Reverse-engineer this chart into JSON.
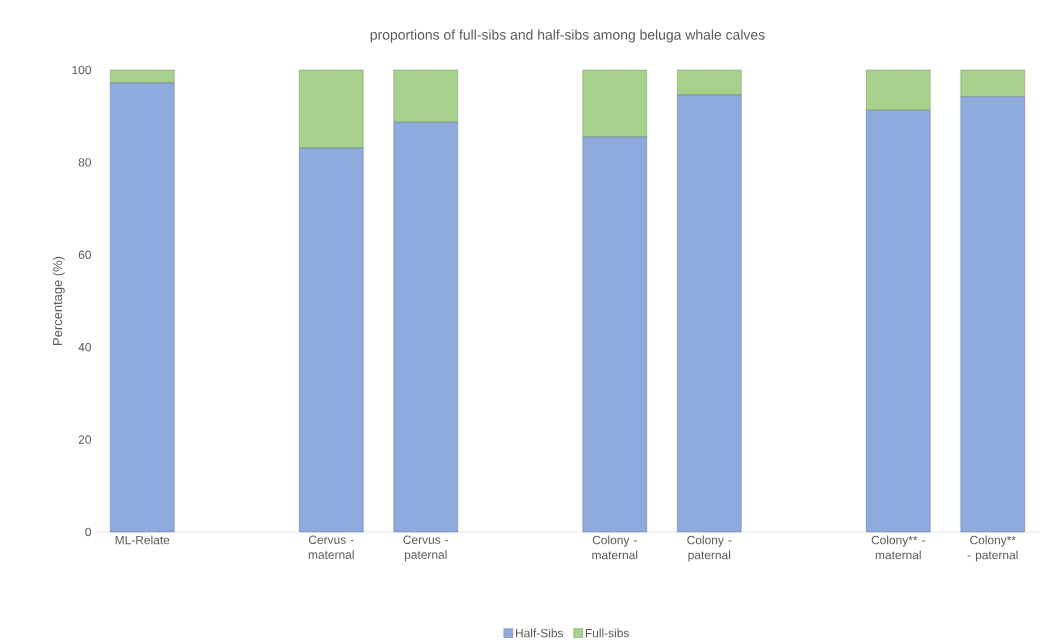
{
  "chart_data": {
    "type": "bar",
    "title": "proportions of full-sibs and half-sibs among beluga whale calves",
    "ylabel": "Percentage (%)",
    "categories": [
      "ML-Relate",
      null,
      "Cervus - maternal",
      "Cervus - paternal",
      null,
      "Colony - maternal",
      "Colony - paternal",
      null,
      "Colony** - maternal",
      "Colony** - paternal"
    ],
    "stacked": true,
    "series": [
      {
        "name": "Half-Sibs",
        "color": "#8faadc",
        "values": [
          97.2,
          null,
          83.1,
          88.7,
          null,
          85.5,
          94.6,
          null,
          91.3,
          94.2
        ]
      },
      {
        "name": "Full-sibs",
        "color": "#a9d18e",
        "values": [
          2.8,
          null,
          16.9,
          11.3,
          null,
          14.5,
          5.4,
          null,
          8.7,
          5.8
        ]
      }
    ],
    "ylim": [
      0,
      100
    ],
    "yticks": [
      0,
      20,
      40,
      60,
      80,
      100
    ],
    "grid": false,
    "legend": "bottom"
  }
}
